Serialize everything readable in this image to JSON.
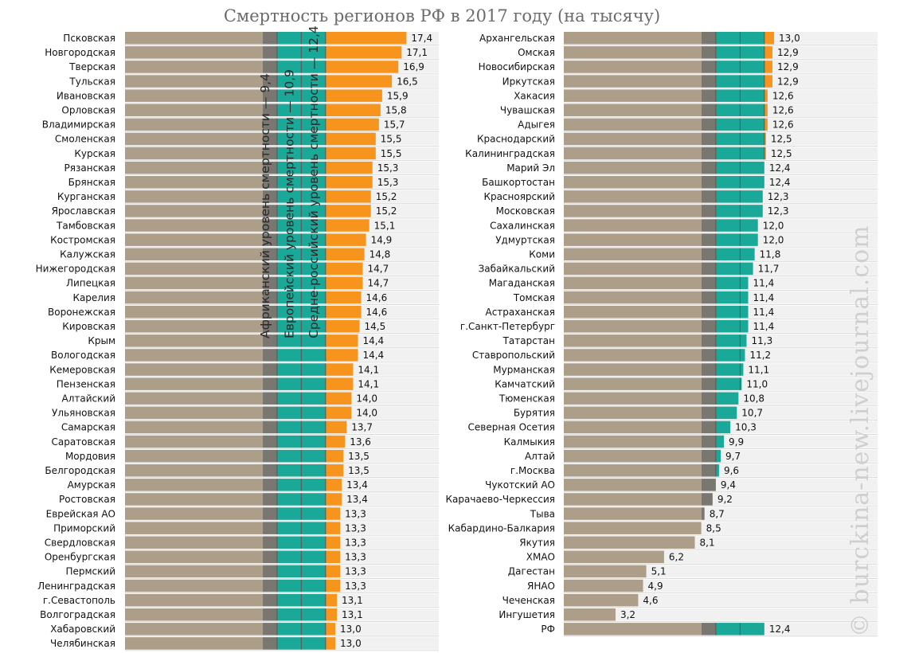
{
  "chart_data": {
    "type": "bar",
    "title": "Смертность регионов РФ в 2017 году (на тысячу)",
    "unit": "на тысячу",
    "xlim": [
      0,
      19.4
    ],
    "reference_lines": [
      {
        "label": "Африканский уровень смертности — 9,4",
        "value": 9.4
      },
      {
        "label": "Европейский уровень смертности — 10,9",
        "value": 10.9
      },
      {
        "label": "Средне-российский уровень смертности — 12,4",
        "value": 12.4
      }
    ],
    "colors": {
      "base": "#ad9e8a",
      "grey_band": "#7a7670",
      "green_band": "#1aa899",
      "orange": "#f7941e",
      "track": "#f1f1f1",
      "gridline": "#cfcfcf"
    },
    "panels": [
      {
        "categories": [
          "Псковская",
          "Новгородская",
          "Тверская",
          "Тульская",
          "Ивановская",
          "Орловская",
          "Владимирская",
          "Смоленская",
          "Курская",
          "Рязанская",
          "Брянская",
          "Курганская",
          "Ярославская",
          "Тамбовская",
          "Костромская",
          "Калужская",
          "Нижегородская",
          "Липецкая",
          "Карелия",
          "Воронежская",
          "Кировская",
          "Крым",
          "Вологодская",
          "Кемеровская",
          "Пензенская",
          "Алтайский",
          "Ульяновская",
          "Самарская",
          "Саратовская",
          "Мордовия",
          "Белгородская",
          "Амурская",
          "Ростовская",
          "Еврейская АО",
          "Приморский",
          "Свердловская",
          "Оренбургская",
          "Пермский",
          "Ленинградская",
          "г.Севастополь",
          "Волгоградская",
          "Хабаровский",
          "Челябинская"
        ],
        "values": [
          17.4,
          17.1,
          16.9,
          16.5,
          15.9,
          15.8,
          15.7,
          15.5,
          15.5,
          15.3,
          15.3,
          15.2,
          15.2,
          15.1,
          14.9,
          14.8,
          14.7,
          14.7,
          14.6,
          14.6,
          14.5,
          14.4,
          14.4,
          14.1,
          14.1,
          14.0,
          14.0,
          13.7,
          13.6,
          13.5,
          13.5,
          13.4,
          13.4,
          13.3,
          13.3,
          13.3,
          13.3,
          13.3,
          13.3,
          13.1,
          13.1,
          13.0,
          13.0
        ],
        "value_labels": [
          "17,4",
          "17,1",
          "16,9",
          "16,5",
          "15,9",
          "15,8",
          "15,7",
          "15,5",
          "15,5",
          "15,3",
          "15,3",
          "15,2",
          "15,2",
          "15,1",
          "14,9",
          "14,8",
          "14,7",
          "14,7",
          "14,6",
          "14,6",
          "14,5",
          "14,4",
          "14,4",
          "14,1",
          "14,1",
          "14,0",
          "14,0",
          "13,7",
          "13,6",
          "13,5",
          "13,5",
          "13,4",
          "13,4",
          "13,3",
          "13,3",
          "13,3",
          "13,3",
          "13,3",
          "13,3",
          "13,1",
          "13,1",
          "13,0",
          "13,0"
        ]
      },
      {
        "categories": [
          "Архангельская",
          "Омская",
          "Новосибирская",
          "Иркутская",
          "Хакасия",
          "Чувашская",
          "Адыгея",
          "Краснодарский",
          "Калининградская",
          "Марий Эл",
          "Башкортостан",
          "Красноярский",
          "Московская",
          "Сахалинская",
          "Удмуртская",
          "Коми",
          "Забайкальский",
          "Магаданская",
          "Томская",
          "Астраханская",
          "г.Санкт-Петербург",
          "Татарстан",
          "Ставропольский",
          "Мурманская",
          "Камчатский",
          "Тюменская",
          "Бурятия",
          "Северная Осетия",
          "Калмыкия",
          "Алтай",
          "г.Москва",
          "Чукотский АО",
          "Карачаево-Черкессия",
          "Тыва",
          "Кабардино-Балкария",
          "Якутия",
          "ХМАО",
          "Дагестан",
          "ЯНАО",
          "Чеченская",
          "Ингушетия",
          "РФ"
        ],
        "values": [
          13.0,
          12.9,
          12.9,
          12.9,
          12.6,
          12.6,
          12.6,
          12.5,
          12.5,
          12.4,
          12.4,
          12.3,
          12.3,
          12.0,
          12.0,
          11.8,
          11.7,
          11.4,
          11.4,
          11.4,
          11.4,
          11.3,
          11.2,
          11.1,
          11.0,
          10.8,
          10.7,
          10.3,
          9.9,
          9.7,
          9.6,
          9.4,
          9.2,
          8.7,
          8.5,
          8.1,
          6.2,
          5.1,
          4.9,
          4.6,
          3.2,
          12.4
        ],
        "value_labels": [
          "13,0",
          "12,9",
          "12,9",
          "12,9",
          "12,6",
          "12,6",
          "12,6",
          "12,5",
          "12,5",
          "12,4",
          "12,4",
          "12,3",
          "12,3",
          "12,0",
          "12,0",
          "11,8",
          "11,7",
          "11,4",
          "11,4",
          "11,4",
          "11,4",
          "11,3",
          "11,2",
          "11,1",
          "11,0",
          "10,8",
          "10,7",
          "10,3",
          "9,9",
          "9,7",
          "9,6",
          "9,4",
          "9,2",
          "8,7",
          "8,5",
          "8,1",
          "6,2",
          "5,1",
          "4,9",
          "4,6",
          "3,2",
          "12,4"
        ]
      }
    ],
    "watermark": "© burckina-new.livejournal.com"
  }
}
